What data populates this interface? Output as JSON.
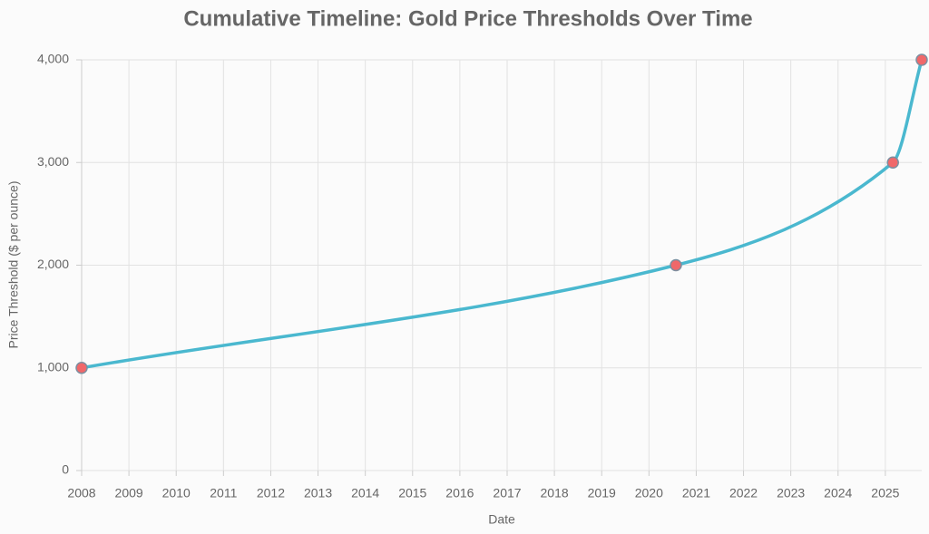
{
  "chart_data": {
    "type": "line",
    "title": "Cumulative Timeline: Gold Price Thresholds Over Time",
    "x_label": "Date",
    "y_label": "Price Threshold ($ per ounce)",
    "x": [
      2008,
      2020.57,
      2025.16,
      2025.77
    ],
    "series": [
      {
        "name": "Price Threshold",
        "color": "#4ab8cf",
        "marker_color": "#f0686a",
        "values": [
          1000,
          2000,
          3000,
          4000
        ]
      }
    ],
    "xlim": [
      2008,
      2025.77
    ],
    "xticks": [
      2008,
      2009,
      2010,
      2011,
      2012,
      2013,
      2014,
      2015,
      2016,
      2017,
      2018,
      2019,
      2020,
      2021,
      2022,
      2023,
      2024,
      2025
    ],
    "ylim": [
      0,
      4000
    ],
    "yticks": [
      0,
      {
        "value": 1000,
        "label": "1,000"
      },
      {
        "value": 2000,
        "label": "2,000"
      },
      {
        "value": 3000,
        "label": "3,000"
      },
      {
        "value": 4000,
        "label": "4,000"
      }
    ],
    "grid": true
  }
}
